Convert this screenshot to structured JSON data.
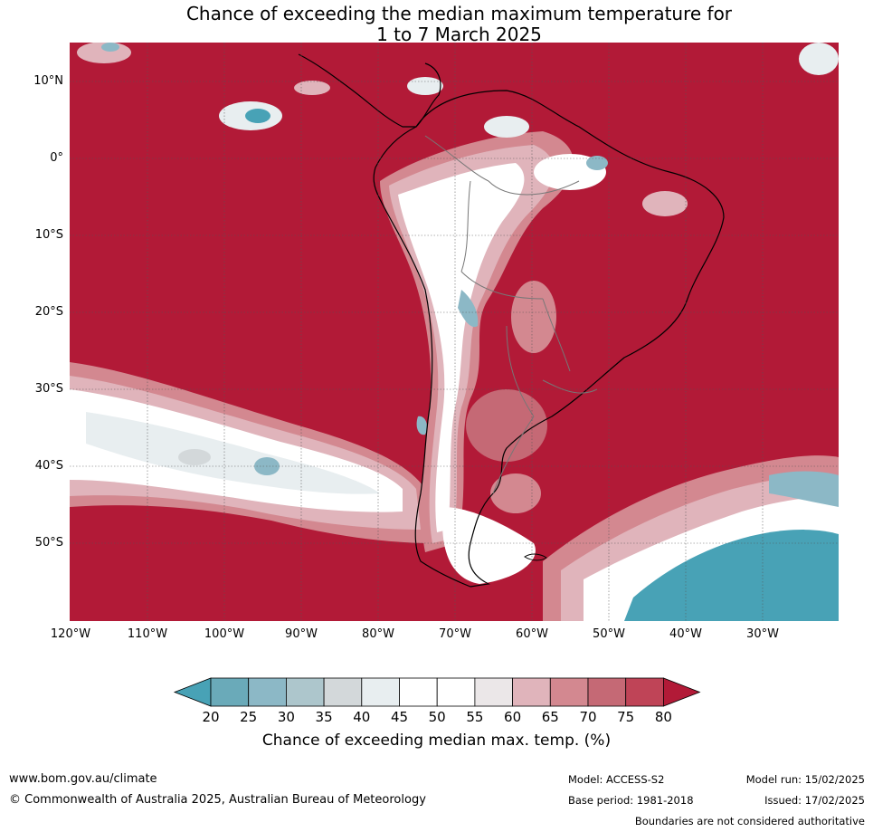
{
  "title_line1": "Chance of exceeding the median maximum temperature for",
  "title_line2": "1 to 7 March 2025",
  "lat_labels": [
    "10°N",
    "0°",
    "10°S",
    "20°S",
    "30°S",
    "40°S",
    "50°S"
  ],
  "lon_labels": [
    "120°W",
    "110°W",
    "100°W",
    "90°W",
    "80°W",
    "70°W",
    "60°W",
    "50°W",
    "40°W",
    "30°W"
  ],
  "colorbar": {
    "ticks": [
      "20",
      "25",
      "30",
      "35",
      "40",
      "45",
      "50",
      "55",
      "60",
      "65",
      "70",
      "75",
      "80"
    ],
    "colors": [
      "#48a2b6",
      "#6aaab9",
      "#8cb8c6",
      "#adc6cc",
      "#d3d8da",
      "#e8eef0",
      "#ffffff",
      "#ffffff",
      "#ebe7e8",
      "#e0b4bb",
      "#d38890",
      "#c56975",
      "#bf4457",
      "#b21a37"
    ],
    "label": "Chance of exceeding median max. temp. (%)"
  },
  "colors": {
    "high": "#b21a37",
    "mid_high": "#c56975",
    "light_pink": "#e0b4bb",
    "white": "#ffffff",
    "light_grey": "#e8eef0",
    "grey": "#d3d8da",
    "teal": "#48a2b6",
    "teal_light": "#8cb8c6"
  },
  "footer": {
    "url": "www.bom.gov.au/climate",
    "copyright": "© Commonwealth of Australia 2025, Australian Bureau of Meteorology",
    "model": "Model: ACCESS-S2",
    "base_period": "Base period: 1981-2018",
    "model_run": "Model run: 15/02/2025",
    "issued": "Issued: 17/02/2025",
    "disclaimer": "Boundaries are not considered authoritative"
  }
}
